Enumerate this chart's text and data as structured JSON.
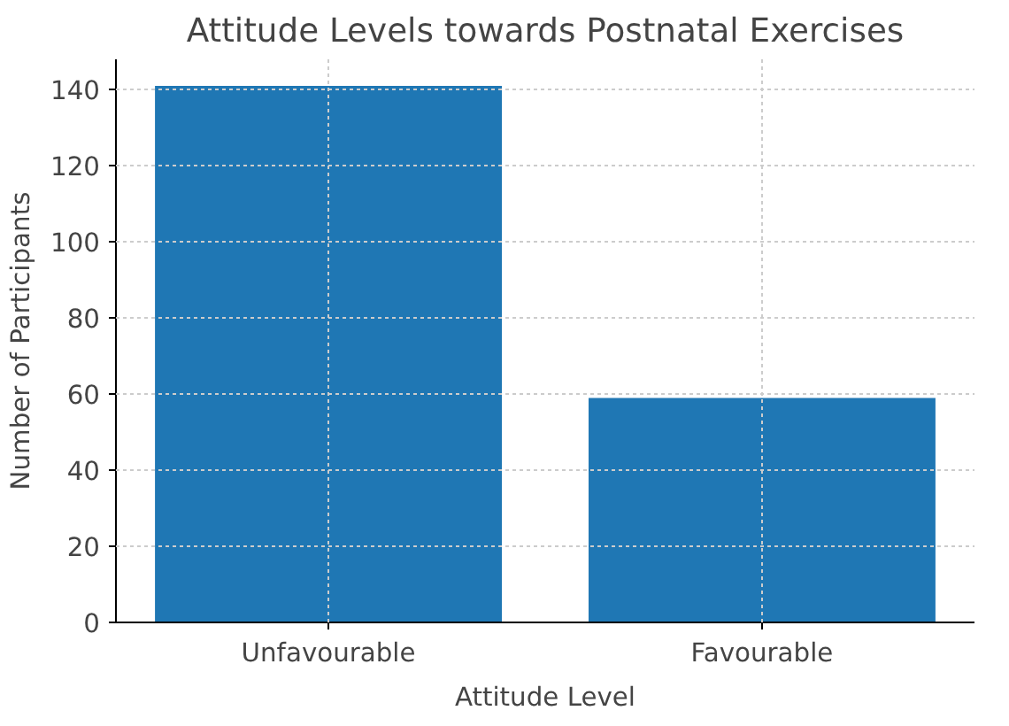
{
  "chart_data": {
    "type": "bar",
    "title": "Attitude Levels towards Postnatal Exercises",
    "xlabel": "Attitude Level",
    "ylabel": "Number of Participants",
    "categories": [
      "Unfavourable",
      "Favourable"
    ],
    "values": [
      141,
      59
    ],
    "color": "#1f77b4",
    "ylim": [
      0,
      148
    ],
    "yticks": [
      0,
      20,
      40,
      60,
      80,
      100,
      120,
      140
    ],
    "grid": true
  }
}
